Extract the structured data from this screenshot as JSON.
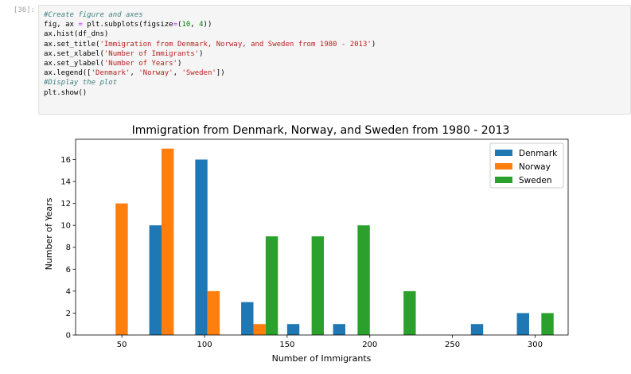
{
  "cell": {
    "prompt": "[36]:",
    "code_lines": [
      [
        {
          "t": "#Create figure and axes",
          "c": "comment"
        }
      ],
      [
        {
          "t": "fig, ax "
        },
        {
          "t": "=",
          "c": "op"
        },
        {
          "t": " plt.subplots(figsize"
        },
        {
          "t": "=",
          "c": "op"
        },
        {
          "t": "("
        },
        {
          "t": "10",
          "c": "number"
        },
        {
          "t": ", "
        },
        {
          "t": "4",
          "c": "number"
        },
        {
          "t": "))"
        }
      ],
      [
        {
          "t": "ax.hist(df_dns)"
        }
      ],
      [
        {
          "t": "ax.set_title("
        },
        {
          "t": "'Immigration from Denmark, Norway, and Sweden from 1980 - 2013'",
          "c": "string"
        },
        {
          "t": ")"
        }
      ],
      [
        {
          "t": "ax.set_xlabel("
        },
        {
          "t": "'Number of Immigrants'",
          "c": "string"
        },
        {
          "t": ")"
        }
      ],
      [
        {
          "t": "ax.set_ylabel("
        },
        {
          "t": "'Number of Years'",
          "c": "string"
        },
        {
          "t": ")"
        }
      ],
      [
        {
          "t": "ax.legend(["
        },
        {
          "t": "'Denmark'",
          "c": "string"
        },
        {
          "t": ", "
        },
        {
          "t": "'Norway'",
          "c": "string"
        },
        {
          "t": ", "
        },
        {
          "t": "'Sweden'",
          "c": "string"
        },
        {
          "t": "])"
        }
      ],
      [
        {
          "t": "#Display the plot",
          "c": "comment"
        }
      ],
      [
        {
          "t": "plt.show()"
        }
      ]
    ]
  },
  "colors": {
    "denmark": "#1f77b4",
    "norway": "#ff7f0e",
    "sweden": "#2ca02c"
  },
  "chart_data": {
    "type": "bar",
    "title": "Immigration from Denmark, Norway, and Sweden from 1980 - 2013",
    "xlabel": "Number of Immigrants",
    "ylabel": "Number of Years",
    "xlim": [
      22,
      320
    ],
    "ylim": [
      0,
      17.85
    ],
    "xticks": [
      50,
      100,
      150,
      200,
      250,
      300
    ],
    "yticks": [
      0,
      2,
      4,
      6,
      8,
      10,
      12,
      14,
      16
    ],
    "legend_position": "top-right",
    "grid": false,
    "bin_edges": [
      36,
      63.8,
      91.6,
      119.4,
      147.2,
      175,
      202.8,
      230.6,
      258.4,
      286.2,
      314
    ],
    "series": [
      {
        "name": "Denmark",
        "values": [
          0,
          10,
          16,
          3,
          1,
          1,
          0,
          0,
          1,
          2
        ]
      },
      {
        "name": "Norway",
        "values": [
          12,
          17,
          4,
          1,
          0,
          0,
          0,
          0,
          0,
          0
        ]
      },
      {
        "name": "Sweden",
        "values": [
          0,
          0,
          0,
          9,
          9,
          10,
          4,
          0,
          0,
          2
        ]
      }
    ]
  }
}
